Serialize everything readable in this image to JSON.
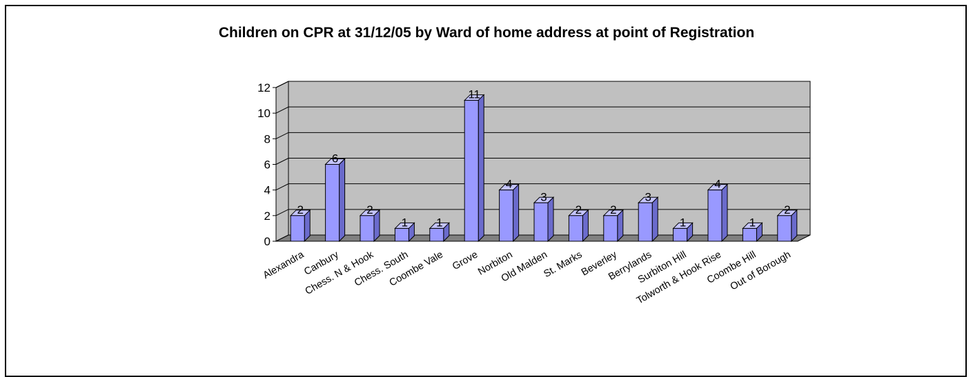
{
  "chart_data": {
    "type": "bar",
    "title": "Children on CPR at 31/12/05 by Ward of home address at point of Registration",
    "xlabel": "",
    "ylabel": "",
    "ylim": [
      0,
      12
    ],
    "yticks": [
      0,
      2,
      4,
      6,
      8,
      10,
      12
    ],
    "grid": true,
    "legend": "none",
    "three_d": true,
    "categories": [
      "Alexandra",
      "Canbury",
      "Chess. N & Hook",
      "Chess. South",
      "Coombe Vale",
      "Grove",
      "Norbiton",
      "Old Malden",
      "St. Marks",
      "Beverley",
      "Berrylands",
      "Surbiton Hill",
      "Tolworth & Hook Rise",
      "Coombe Hill",
      "Out of Borough"
    ],
    "values": [
      2,
      6,
      2,
      1,
      1,
      11,
      4,
      3,
      2,
      2,
      3,
      1,
      4,
      1,
      2
    ],
    "colors": {
      "bar_front": "#9999ff",
      "bar_side": "#6b6bcc",
      "bar_top": "#c4c4ff",
      "wall": "#c0c0c0",
      "floor": "#808080"
    }
  }
}
